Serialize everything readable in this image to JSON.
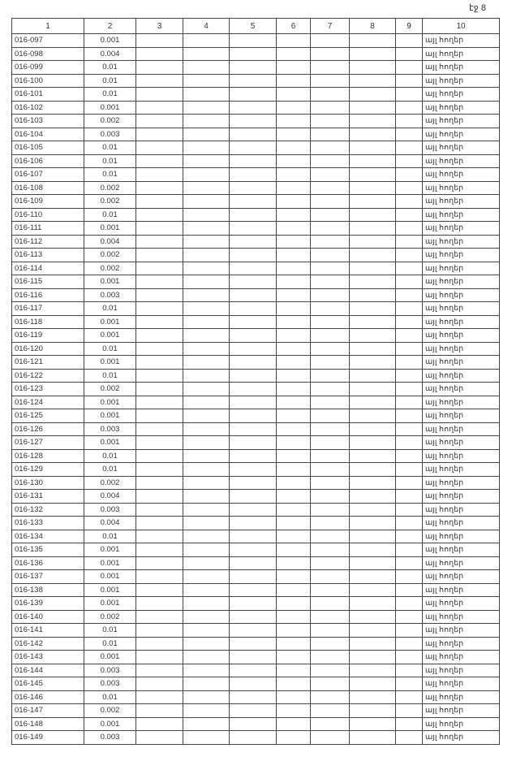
{
  "page_label": "էջ 8",
  "columns": [
    "1",
    "2",
    "3",
    "4",
    "5",
    "6",
    "7",
    "8",
    "9",
    "10"
  ],
  "land_type": "այլ հողեր",
  "rows": [
    [
      "016-097",
      "0.001"
    ],
    [
      "016-098",
      "0.004"
    ],
    [
      "016-099",
      "0.01"
    ],
    [
      "016-100",
      "0.01"
    ],
    [
      "016-101",
      "0.01"
    ],
    [
      "016-102",
      "0.001"
    ],
    [
      "016-103",
      "0.002"
    ],
    [
      "016-104",
      "0.003"
    ],
    [
      "016-105",
      "0.01"
    ],
    [
      "016-106",
      "0.01"
    ],
    [
      "016-107",
      "0.01"
    ],
    [
      "016-108",
      "0.002"
    ],
    [
      "016-109",
      "0.002"
    ],
    [
      "016-110",
      "0.01"
    ],
    [
      "016-111",
      "0.001"
    ],
    [
      "016-112",
      "0.004"
    ],
    [
      "016-113",
      "0.002"
    ],
    [
      "016-114",
      "0.002"
    ],
    [
      "016-115",
      "0.001"
    ],
    [
      "016-116",
      "0.003"
    ],
    [
      "016-117",
      "0.01"
    ],
    [
      "016-118",
      "0.001"
    ],
    [
      "016-119",
      "0.001"
    ],
    [
      "016-120",
      "0.01"
    ],
    [
      "016-121",
      "0.001"
    ],
    [
      "016-122",
      "0.01"
    ],
    [
      "016-123",
      "0.002"
    ],
    [
      "016-124",
      "0.001"
    ],
    [
      "016-125",
      "0.001"
    ],
    [
      "016-126",
      "0.003"
    ],
    [
      "016-127",
      "0.001"
    ],
    [
      "016-128",
      "0.01"
    ],
    [
      "016-129",
      "0.01"
    ],
    [
      "016-130",
      "0.002"
    ],
    [
      "016-131",
      "0.004"
    ],
    [
      "016-132",
      "0.003"
    ],
    [
      "016-133",
      "0.004"
    ],
    [
      "016-134",
      "0.01"
    ],
    [
      "016-135",
      "0.001"
    ],
    [
      "016-136",
      "0.001"
    ],
    [
      "016-137",
      "0.001"
    ],
    [
      "016-138",
      "0.001"
    ],
    [
      "016-139",
      "0.001"
    ],
    [
      "016-140",
      "0.002"
    ],
    [
      "016-141",
      "0.01"
    ],
    [
      "016-142",
      "0.01"
    ],
    [
      "016-143",
      "0.001"
    ],
    [
      "016-144",
      "0.003"
    ],
    [
      "016-145",
      "0.003"
    ],
    [
      "016-146",
      "0.01"
    ],
    [
      "016-147",
      "0.002"
    ],
    [
      "016-148",
      "0.001"
    ],
    [
      "016-149",
      "0.003"
    ]
  ]
}
